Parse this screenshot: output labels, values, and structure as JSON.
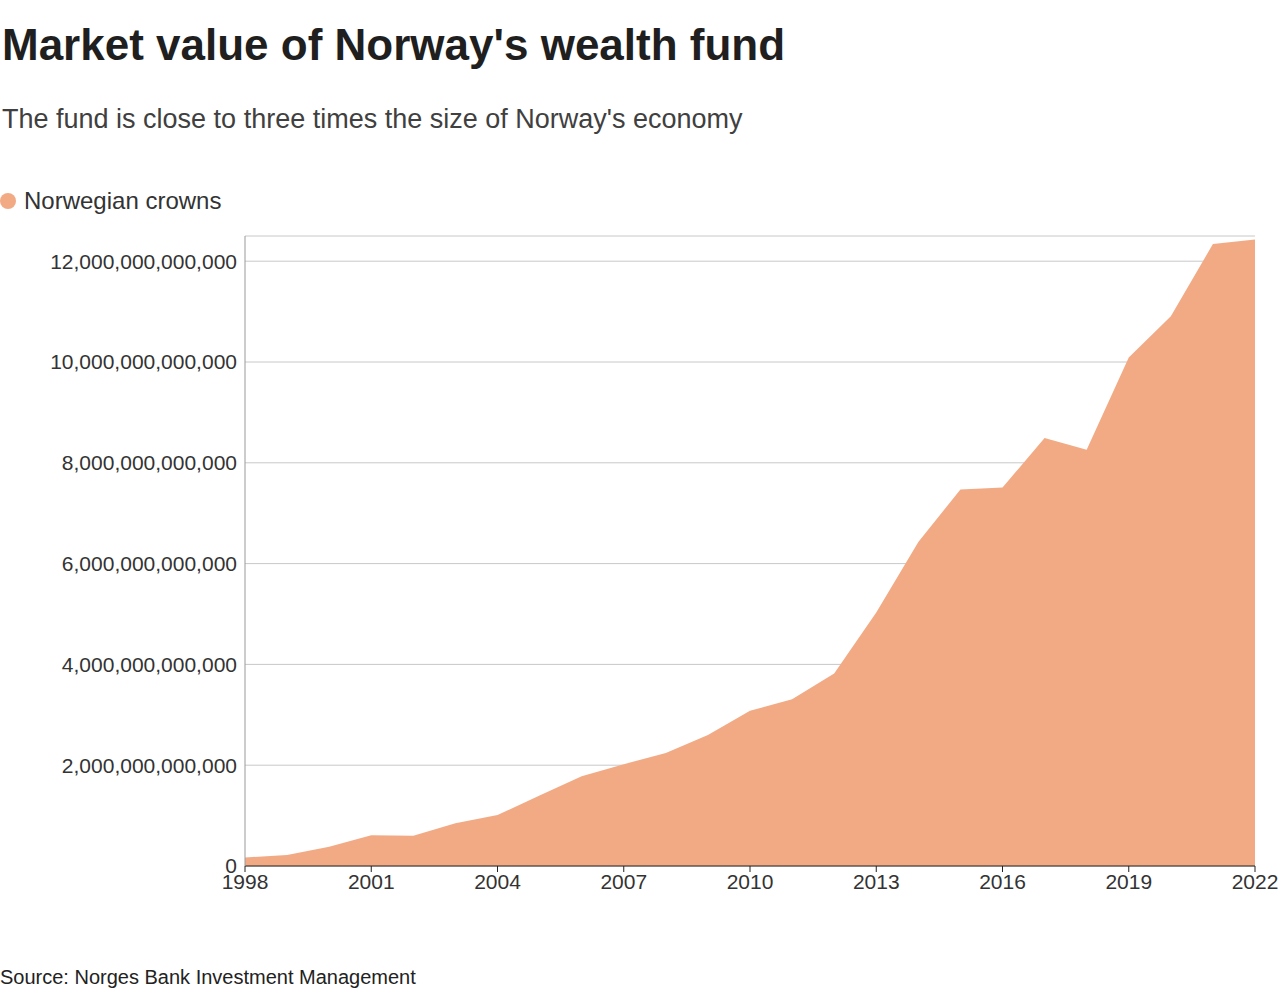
{
  "chart_data": {
    "type": "area",
    "title": "Market value of Norway's wealth fund",
    "subtitle": "The fund is close to three times the size of Norway's economy",
    "source": "Source: Norges Bank Investment Management",
    "x": [
      1998,
      1999,
      2000,
      2001,
      2002,
      2003,
      2004,
      2005,
      2006,
      2007,
      2008,
      2009,
      2010,
      2011,
      2012,
      2013,
      2014,
      2015,
      2016,
      2017,
      2018,
      2019,
      2020,
      2021,
      2022
    ],
    "series": [
      {
        "name": "Norwegian crowns",
        "color": "#f2aa84",
        "values": [
          170000000000,
          220000000000,
          380000000000,
          610000000000,
          600000000000,
          850000000000,
          1010000000000,
          1400000000000,
          1780000000000,
          2020000000000,
          2240000000000,
          2600000000000,
          3080000000000,
          3310000000000,
          3820000000000,
          5030000000000,
          6430000000000,
          7470000000000,
          7510000000000,
          8490000000000,
          8260000000000,
          10090000000000,
          10910000000000,
          12340000000000,
          12430000000000
        ]
      }
    ],
    "xlim": [
      1998,
      2022
    ],
    "xticks": [
      1998,
      2001,
      2004,
      2007,
      2010,
      2013,
      2016,
      2019,
      2022
    ],
    "ylim": [
      0,
      12500000000000
    ],
    "yticks": [
      0,
      {
        "value": 2000000000000,
        "label": "2,000,000,000,000"
      },
      {
        "value": 4000000000000,
        "label": "4,000,000,000,000"
      },
      {
        "value": 6000000000000,
        "label": "6,000,000,000,000"
      },
      {
        "value": 8000000000000,
        "label": "8,000,000,000,000"
      },
      {
        "value": 10000000000000,
        "label": "10,000,000,000,000"
      },
      {
        "value": 12000000000000,
        "label": "12,000,000,000,000"
      }
    ],
    "grid": true,
    "legend": "top-left"
  }
}
